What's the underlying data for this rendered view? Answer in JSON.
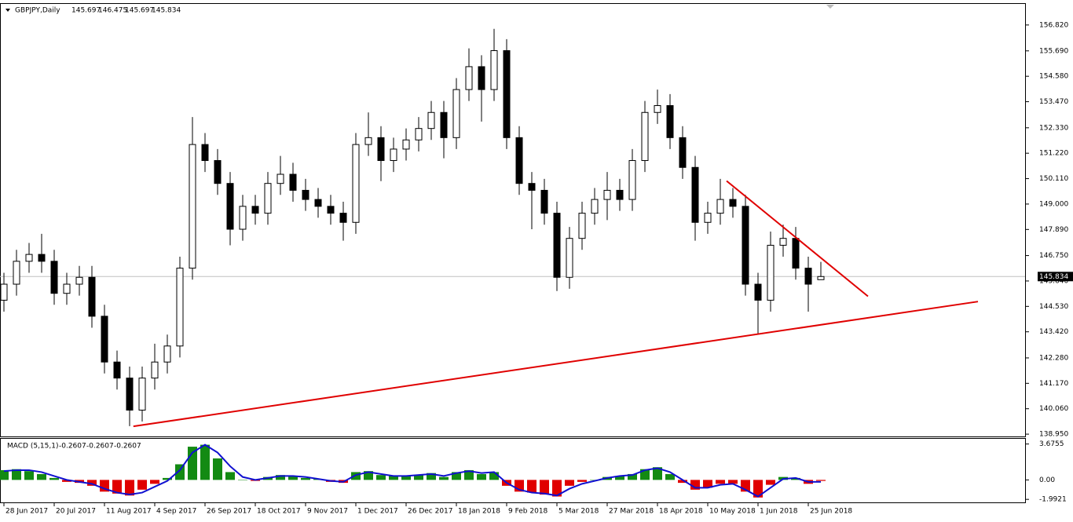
{
  "chart_data": [
    {
      "type": "candlestick",
      "symbol": "GBPJPY,Daily",
      "categories": [
        "28 Jun 2017",
        null,
        null,
        null,
        "20 Jul 2017",
        null,
        null,
        null,
        "11 Aug 2017",
        null,
        null,
        null,
        "4 Sep 2017",
        null,
        null,
        null,
        "26 Sep 2017",
        null,
        null,
        null,
        "18 Oct 2017",
        null,
        null,
        null,
        "9 Nov 2017",
        null,
        null,
        null,
        "1 Dec 2017",
        null,
        null,
        null,
        "26 Dec 2017",
        null,
        null,
        null,
        "18 Jan 2018",
        null,
        null,
        null,
        "9 Feb 2018",
        null,
        null,
        null,
        "5 Mar 2018",
        null,
        null,
        null,
        "27 Mar 2018",
        null,
        null,
        null,
        "18 Apr 2018",
        null,
        null,
        null,
        "10 May 2018",
        null,
        null,
        null,
        "1 Jun 2018",
        null,
        null,
        null,
        "25 Jun 2018",
        null
      ],
      "open": [
        144.8,
        145.5,
        146.5,
        146.8,
        146.5,
        145.1,
        145.5,
        145.8,
        144.1,
        142.1,
        141.4,
        140.0,
        141.4,
        142.1,
        142.8,
        146.2,
        151.6,
        150.9,
        149.9,
        147.9,
        148.9,
        148.6,
        149.9,
        150.3,
        149.6,
        149.2,
        148.9,
        148.6,
        148.2,
        151.6,
        151.9,
        150.9,
        151.4,
        151.8,
        152.3,
        153.0,
        151.9,
        154.0,
        155.0,
        154.0,
        155.7,
        151.9,
        149.9,
        149.6,
        148.6,
        145.8,
        147.5,
        148.6,
        149.2,
        149.6,
        149.2,
        150.9,
        153.0,
        153.3,
        151.9,
        150.6,
        148.2,
        148.6,
        149.2,
        148.9,
        145.5,
        144.8,
        147.2,
        147.5,
        146.2,
        145.697
      ],
      "high": [
        146.0,
        147.0,
        147.3,
        147.7,
        147.0,
        146.0,
        146.3,
        146.3,
        144.6,
        142.6,
        141.9,
        141.9,
        142.9,
        143.3,
        146.7,
        152.8,
        152.1,
        151.4,
        150.4,
        149.4,
        149.4,
        150.4,
        151.1,
        150.8,
        150.1,
        149.7,
        149.4,
        149.1,
        152.1,
        153.0,
        152.4,
        151.9,
        152.3,
        152.8,
        153.5,
        153.5,
        154.5,
        155.8,
        155.5,
        156.65,
        156.2,
        152.4,
        150.4,
        150.1,
        149.1,
        148.0,
        149.1,
        149.7,
        150.4,
        150.1,
        151.4,
        153.5,
        154.0,
        153.8,
        152.4,
        151.1,
        149.1,
        150.1,
        149.7,
        149.4,
        146.0,
        147.8,
        148.1,
        148.0,
        146.7,
        146.475
      ],
      "low": [
        144.3,
        145.0,
        146.0,
        146.0,
        144.6,
        144.6,
        145.0,
        143.6,
        141.6,
        140.9,
        139.3,
        139.5,
        140.9,
        141.6,
        142.3,
        145.7,
        150.4,
        149.4,
        147.2,
        147.4,
        148.1,
        148.1,
        149.4,
        149.1,
        148.7,
        148.4,
        148.1,
        147.4,
        147.7,
        151.1,
        150.0,
        150.4,
        150.9,
        151.3,
        151.8,
        151.0,
        151.4,
        153.5,
        152.6,
        153.5,
        151.4,
        149.4,
        147.9,
        148.1,
        145.2,
        145.3,
        147.0,
        148.1,
        148.3,
        148.7,
        148.7,
        150.4,
        152.5,
        151.4,
        150.1,
        147.4,
        147.7,
        148.1,
        148.4,
        145.0,
        143.3,
        144.3,
        146.7,
        145.7,
        144.3,
        145.697
      ],
      "close": [
        145.5,
        146.5,
        146.8,
        146.5,
        145.1,
        145.5,
        145.8,
        144.1,
        142.1,
        141.4,
        140.0,
        141.4,
        142.1,
        142.8,
        146.2,
        151.6,
        150.9,
        149.9,
        147.9,
        148.9,
        148.6,
        149.9,
        150.3,
        149.6,
        149.2,
        148.9,
        148.6,
        148.2,
        151.6,
        151.9,
        150.9,
        151.4,
        151.8,
        152.3,
        153.0,
        151.9,
        154.0,
        155.0,
        154.0,
        155.7,
        151.9,
        149.9,
        149.6,
        148.6,
        145.8,
        147.5,
        148.6,
        149.2,
        149.6,
        149.2,
        150.9,
        153.0,
        153.3,
        151.9,
        150.6,
        148.2,
        148.6,
        149.2,
        148.9,
        145.5,
        144.8,
        147.2,
        147.5,
        146.2,
        145.5,
        145.834
      ],
      "xlim": [
        -0.3125,
        81.25
      ],
      "ylim": [
        138.85,
        157.74
      ],
      "yticks": [
        {
          "value": 156.82,
          "label": "156.820"
        },
        {
          "value": 155.69,
          "label": "155.690"
        },
        {
          "value": 154.58,
          "label": "154.580"
        },
        {
          "value": 153.47,
          "label": "153.470"
        },
        {
          "value": 152.33,
          "label": "152.330"
        },
        {
          "value": 151.22,
          "label": "151.220"
        },
        {
          "value": 150.11,
          "label": "150.110"
        },
        {
          "value": 149.0,
          "label": "149.000"
        },
        {
          "value": 147.89,
          "label": "147.890"
        },
        {
          "value": 146.75,
          "label": "146.750"
        },
        {
          "value": 145.64,
          "label": "145.640"
        },
        {
          "value": 144.53,
          "label": "144.530"
        },
        {
          "value": 143.42,
          "label": "143.420"
        },
        {
          "value": 142.28,
          "label": "142.280"
        },
        {
          "value": 141.17,
          "label": "141.170"
        },
        {
          "value": 140.06,
          "label": "140.060"
        },
        {
          "value": 138.95,
          "label": "138.950"
        }
      ],
      "trendlines": [
        {
          "x": [
            10.3,
            77.5
          ],
          "y": [
            139.29,
            144.74
          ],
          "color": "#e00000"
        },
        {
          "x": [
            57.5,
            68.75
          ],
          "y": [
            150.01,
            144.97
          ],
          "color": "#e00000"
        }
      ]
    },
    {
      "type": "macd",
      "label": "MACD (5,15,1)",
      "readout": [
        -0.2607,
        -0.2607,
        -0.2607
      ],
      "histogram": [
        1.0,
        1.1,
        0.9,
        0.6,
        0.2,
        -0.2,
        -0.3,
        -0.6,
        -1.2,
        -1.4,
        -1.6,
        -1.0,
        -0.4,
        0.2,
        1.6,
        3.4,
        3.6,
        2.2,
        0.8,
        0.0,
        -0.1,
        0.3,
        0.5,
        0.4,
        0.2,
        0.1,
        -0.2,
        -0.3,
        0.8,
        0.9,
        0.5,
        0.4,
        0.4,
        0.5,
        0.7,
        0.3,
        0.8,
        1.0,
        0.6,
        0.8,
        -0.6,
        -1.2,
        -1.3,
        -1.5,
        -1.7,
        -0.6,
        -0.2,
        0.0,
        0.3,
        0.4,
        0.6,
        1.1,
        1.3,
        0.6,
        -0.3,
        -1.0,
        -0.8,
        -0.4,
        -0.4,
        -1.2,
        -1.8,
        -0.5,
        0.3,
        0.2,
        -0.4,
        -0.1
      ],
      "signal": [
        0.9,
        1.0,
        1.0,
        0.8,
        0.4,
        0.0,
        -0.2,
        -0.4,
        -0.9,
        -1.3,
        -1.5,
        -1.3,
        -0.7,
        -0.1,
        1.0,
        2.8,
        3.6,
        2.8,
        1.4,
        0.3,
        0.0,
        0.2,
        0.4,
        0.4,
        0.3,
        0.1,
        -0.1,
        -0.2,
        0.5,
        0.8,
        0.6,
        0.4,
        0.4,
        0.5,
        0.6,
        0.4,
        0.7,
        0.9,
        0.7,
        0.8,
        -0.3,
        -1.0,
        -1.3,
        -1.4,
        -1.6,
        -0.9,
        -0.4,
        -0.1,
        0.2,
        0.4,
        0.5,
        1.0,
        1.2,
        0.8,
        0.0,
        -0.8,
        -0.8,
        -0.5,
        -0.4,
        -1.0,
        -1.7,
        -0.8,
        0.1,
        0.2,
        -0.2,
        -0.2
      ],
      "colors": {
        "positive": "#138a13",
        "negative": "#e00000",
        "signal": "#1010d0"
      },
      "ylim": [
        -2.3,
        4.21
      ],
      "yticks": [
        3.6755,
        {
          "value": 0,
          "label": "0.00"
        },
        -1.9921
      ]
    }
  ]
}
